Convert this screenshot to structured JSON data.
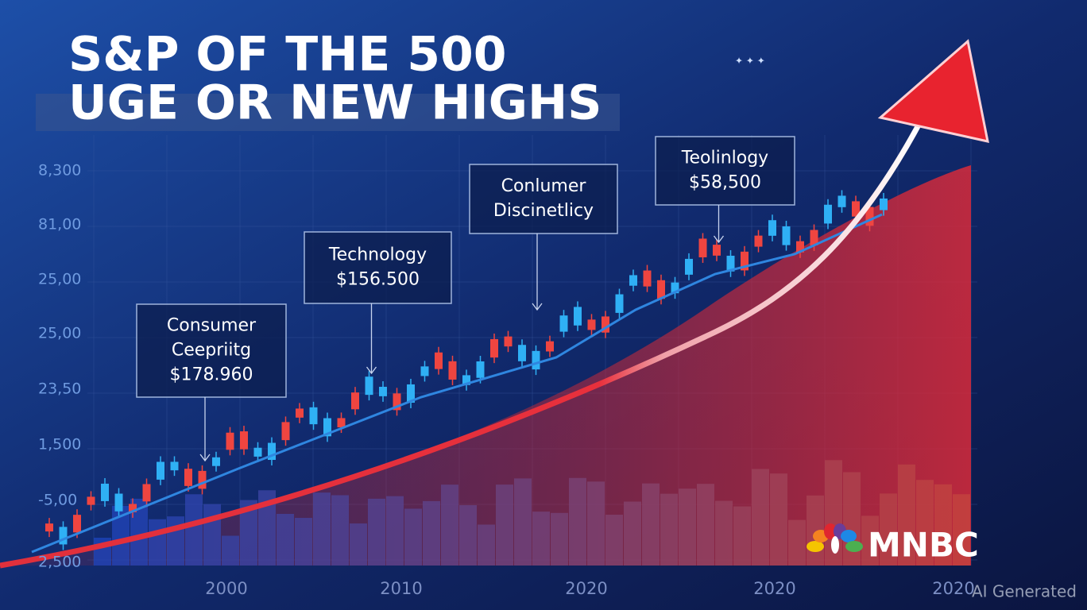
{
  "title": {
    "line1": "S&P OF THE 500",
    "line2": "UGE OR NEW HIGHS"
  },
  "y_labels": [
    "8,300",
    "81,00",
    "25,00",
    "25,00",
    "23,50",
    "1,500",
    "-5,00",
    "2,500"
  ],
  "x_labels": [
    "2000",
    "2010",
    "2020",
    "2020",
    "2020"
  ],
  "annotations": [
    {
      "lines": [
        "Consumer",
        "Ceepriitg",
        "$178.960"
      ]
    },
    {
      "lines": [
        "Technology",
        "$156.500"
      ]
    },
    {
      "lines": [
        "Conlumer",
        "Discinetlicy"
      ]
    },
    {
      "lines": [
        "Teolinlogy",
        "$58,500"
      ]
    }
  ],
  "logo": "MNBC",
  "watermark": "AI Generated"
}
